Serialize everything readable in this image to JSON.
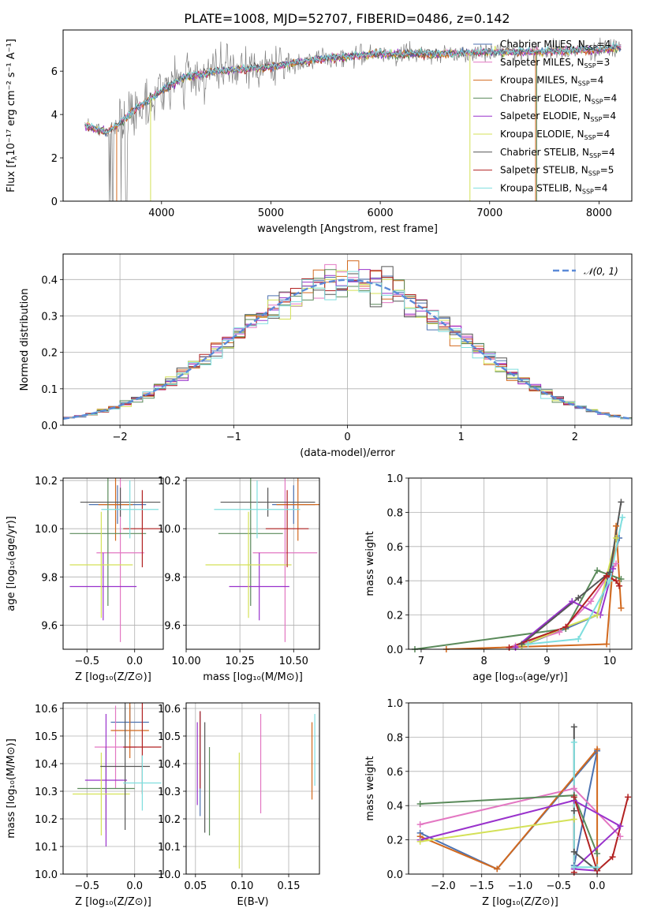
{
  "figure": {
    "title": "PLATE=1008, MJD=52707, FIBERID=0486, z=0.142"
  },
  "legend": {
    "entries": [
      {
        "label": "Chabrier MILES, N",
        "sub": "SSP",
        "tail": "=4",
        "color": "#4c72b0"
      },
      {
        "label": "Salpeter MILES, N",
        "sub": "SSP",
        "tail": "=3",
        "color": "#e377c2"
      },
      {
        "label": "Kroupa MILES, N",
        "sub": "SSP",
        "tail": "=4",
        "color": "#d2691e"
      },
      {
        "label": "Chabrier ELODIE, N",
        "sub": "SSP",
        "tail": "=4",
        "color": "#5a8a5a"
      },
      {
        "label": "Salpeter ELODIE, N",
        "sub": "SSP",
        "tail": "=4",
        "color": "#9932cc"
      },
      {
        "label": "Kroupa ELODIE, N",
        "sub": "SSP",
        "tail": "=4",
        "color": "#d4e157"
      },
      {
        "label": "Chabrier STELIB, N",
        "sub": "SSP",
        "tail": "=4",
        "color": "#555555"
      },
      {
        "label": "Salpeter STELIB, N",
        "sub": "SSP",
        "tail": "=5",
        "color": "#b22222"
      },
      {
        "label": "Kroupa STELIB, N",
        "sub": "SSP",
        "tail": "=4",
        "color": "#7fdede"
      }
    ],
    "normal_label": "𝒩(0, 1)"
  },
  "chart_data": [
    {
      "type": "line",
      "name": "spectrum",
      "xlabel": "wavelength [Angstrom, rest frame]",
      "ylabel": "Flux [f",
      "ylabel_sub": "λ",
      "ylabel_tail": "10⁻¹⁷ erg cm⁻² s⁻¹ A⁻¹]",
      "xlim": [
        3100,
        8300
      ],
      "ylim": [
        0,
        7.9
      ],
      "xticks": [
        "4000",
        "5000",
        "6000",
        "7000",
        "8000"
      ],
      "yticks": [
        "0",
        "2",
        "4",
        "6"
      ],
      "model_curve": {
        "x": [
          3300,
          3500,
          3600,
          3800,
          4000,
          4200,
          4500,
          5000,
          5500,
          6000,
          6500,
          7000,
          7500,
          8000,
          8200
        ],
        "y": [
          3.5,
          3.2,
          3.5,
          4.4,
          5.1,
          5.7,
          6.0,
          6.2,
          6.6,
          6.8,
          6.8,
          6.9,
          6.9,
          7.0,
          7.1
        ]
      }
    },
    {
      "type": "bar",
      "name": "residual-histogram",
      "xlabel": "(data-model)/error",
      "ylabel": "Normed distribution",
      "xlim": [
        -2.5,
        2.5
      ],
      "ylim": [
        0,
        0.47
      ],
      "xticks": [
        "−2",
        "−1",
        "0",
        "1",
        "2"
      ],
      "yticks": [
        "0.0",
        "0.1",
        "0.2",
        "0.3",
        "0.4"
      ],
      "bin_width": 0.1
    },
    {
      "type": "scatter",
      "name": "age-vs-Z",
      "xlabel": "Z [log₁₀(Z/Z⊙)]",
      "ylabel": "age  [log₁₀(age/yr)]",
      "xlim": [
        -0.75,
        0.3
      ],
      "ylim": [
        9.5,
        10.21
      ],
      "xticks": [
        "−0.5",
        "0.0"
      ],
      "yticks": [
        "9.6",
        "9.8",
        "10.0",
        "10.2"
      ],
      "points": [
        {
          "x": -0.18,
          "y": 10.1,
          "xerr": 0.3,
          "yerr": 0.08,
          "c": 0
        },
        {
          "x": -0.15,
          "y": 9.9,
          "xerr": 0.25,
          "yerr": 0.37,
          "c": 1
        },
        {
          "x": -0.2,
          "y": 10.1,
          "xerr": 0.18,
          "yerr": 0.15,
          "c": 2
        },
        {
          "x": -0.28,
          "y": 9.98,
          "xerr": 0.4,
          "yerr": 0.3,
          "c": 3
        },
        {
          "x": -0.33,
          "y": 9.76,
          "xerr": 0.35,
          "yerr": 0.14,
          "c": 4
        },
        {
          "x": -0.35,
          "y": 9.85,
          "xerr": 0.33,
          "yerr": 0.22,
          "c": 5
        },
        {
          "x": -0.15,
          "y": 10.11,
          "xerr": 0.42,
          "yerr": 0.06,
          "c": 6
        },
        {
          "x": 0.08,
          "y": 10.0,
          "xerr": 0.2,
          "yerr": 0.16,
          "c": 7
        },
        {
          "x": -0.05,
          "y": 10.08,
          "xerr": 0.3,
          "yerr": 0.12,
          "c": 8
        }
      ]
    },
    {
      "type": "scatter",
      "name": "age-vs-mass",
      "xlabel": "mass [log₁₀(M/M⊙)]",
      "ylabel": "",
      "xlim": [
        10.0,
        10.62
      ],
      "ylim": [
        9.5,
        10.21
      ],
      "xticks": [
        "10.00",
        "10.25",
        "10.50"
      ],
      "yticks": [
        "9.6",
        "9.8",
        "10.0",
        "10.2"
      ],
      "points": [
        {
          "x": 10.5,
          "y": 10.1,
          "xerr": 0.1,
          "yerr": 0.08,
          "c": 0
        },
        {
          "x": 10.46,
          "y": 9.9,
          "xerr": 0.15,
          "yerr": 0.37,
          "c": 1
        },
        {
          "x": 10.52,
          "y": 10.1,
          "xerr": 0.1,
          "yerr": 0.15,
          "c": 2
        },
        {
          "x": 10.3,
          "y": 9.98,
          "xerr": 0.15,
          "yerr": 0.3,
          "c": 3
        },
        {
          "x": 10.34,
          "y": 9.76,
          "xerr": 0.14,
          "yerr": 0.14,
          "c": 4
        },
        {
          "x": 10.29,
          "y": 9.85,
          "xerr": 0.2,
          "yerr": 0.22,
          "c": 5
        },
        {
          "x": 10.38,
          "y": 10.11,
          "xerr": 0.22,
          "yerr": 0.06,
          "c": 6
        },
        {
          "x": 10.47,
          "y": 10.0,
          "xerr": 0.1,
          "yerr": 0.16,
          "c": 7
        },
        {
          "x": 10.33,
          "y": 10.08,
          "xerr": 0.2,
          "yerr": 0.12,
          "c": 8
        }
      ]
    },
    {
      "type": "line",
      "name": "mass-weight-vs-age",
      "xlabel": "age  [log₁₀(age/yr)]",
      "ylabel": "mass weight",
      "xlim": [
        6.8,
        10.35
      ],
      "ylim": [
        0,
        1.0
      ],
      "xticks": [
        "7",
        "8",
        "9",
        "10"
      ],
      "yticks": [
        "0.0",
        "0.2",
        "0.4",
        "0.6",
        "0.8",
        "1.0"
      ],
      "series": [
        {
          "c": 0,
          "x": [
            8.6,
            9.3,
            9.8,
            10.15
          ],
          "y": [
            0.02,
            0.12,
            0.2,
            0.65
          ]
        },
        {
          "c": 1,
          "x": [
            8.5,
            9.2,
            9.7,
            10.1
          ],
          "y": [
            0.02,
            0.1,
            0.28,
            0.5
          ]
        },
        {
          "c": 2,
          "x": [
            7.4,
            9.95,
            10.1,
            10.18
          ],
          "y": [
            0.0,
            0.03,
            0.72,
            0.24
          ]
        },
        {
          "c": 3,
          "x": [
            6.9,
            9.3,
            9.8,
            10.18
          ],
          "y": [
            0.0,
            0.12,
            0.46,
            0.41
          ]
        },
        {
          "c": 4,
          "x": [
            8.5,
            9.4,
            9.85,
            10.05
          ],
          "y": [
            0.01,
            0.28,
            0.2,
            0.47
          ]
        },
        {
          "c": 5,
          "x": [
            8.6,
            9.3,
            9.8,
            10.1
          ],
          "y": [
            0.02,
            0.13,
            0.2,
            0.65
          ]
        },
        {
          "c": 6,
          "x": [
            8.6,
            9.5,
            10.0,
            10.18
          ],
          "y": [
            0.03,
            0.3,
            0.45,
            0.86
          ]
        },
        {
          "c": 7,
          "x": [
            8.4,
            9.3,
            9.95,
            10.1,
            10.15
          ],
          "y": [
            0.01,
            0.13,
            0.43,
            0.4,
            0.37
          ]
        },
        {
          "c": 8,
          "x": [
            8.7,
            9.5,
            10.0,
            10.2
          ],
          "y": [
            0.03,
            0.06,
            0.4,
            0.77
          ]
        }
      ]
    },
    {
      "type": "scatter",
      "name": "mass-vs-Z",
      "xlabel": "Z [log₁₀(Z/Z⊙)]",
      "ylabel": "mass [log₁₀(M/M⊙)]",
      "xlim": [
        -0.75,
        0.3
      ],
      "ylim": [
        10.0,
        10.62
      ],
      "xticks": [
        "−0.5",
        "0.0"
      ],
      "yticks": [
        "10.0",
        "10.1",
        "10.2",
        "10.3",
        "10.4",
        "10.5",
        "10.6"
      ],
      "points": [
        {
          "x": -0.05,
          "y": 10.55,
          "xerr": 0.2,
          "yerr": 0.06,
          "c": 0
        },
        {
          "x": -0.2,
          "y": 10.46,
          "xerr": 0.22,
          "yerr": 0.15,
          "c": 1
        },
        {
          "x": -0.05,
          "y": 10.52,
          "xerr": 0.2,
          "yerr": 0.1,
          "c": 2
        },
        {
          "x": -0.3,
          "y": 10.31,
          "xerr": 0.3,
          "yerr": 0.15,
          "c": 3
        },
        {
          "x": -0.3,
          "y": 10.34,
          "xerr": 0.22,
          "yerr": 0.24,
          "c": 4
        },
        {
          "x": -0.35,
          "y": 10.29,
          "xerr": 0.3,
          "yerr": 0.15,
          "c": 5
        },
        {
          "x": -0.1,
          "y": 10.39,
          "xerr": 0.26,
          "yerr": 0.23,
          "c": 6
        },
        {
          "x": 0.08,
          "y": 10.46,
          "xerr": 0.2,
          "yerr": 0.17,
          "c": 7
        },
        {
          "x": 0.08,
          "y": 10.33,
          "xerr": 0.2,
          "yerr": 0.1,
          "c": 8
        }
      ]
    },
    {
      "type": "scatter",
      "name": "mass-vs-EBV",
      "xlabel": "E(B-V)",
      "ylabel": "",
      "xlim": [
        0.04,
        0.183
      ],
      "ylim": [
        10.0,
        10.62
      ],
      "xticks": [
        "0.05",
        "0.10",
        "0.15"
      ],
      "yticks": [
        "10.0",
        "10.1",
        "10.2",
        "10.3",
        "10.4",
        "10.5",
        "10.6"
      ],
      "points": [
        {
          "x": 0.055,
          "y": 10.4,
          "yerr": 0.19,
          "c": 0
        },
        {
          "x": 0.12,
          "y": 10.4,
          "yerr": 0.18,
          "c": 1
        },
        {
          "x": 0.175,
          "y": 10.41,
          "yerr": 0.14,
          "c": 2
        },
        {
          "x": 0.065,
          "y": 10.3,
          "yerr": 0.16,
          "c": 3
        },
        {
          "x": 0.052,
          "y": 10.4,
          "yerr": 0.15,
          "c": 4
        },
        {
          "x": 0.097,
          "y": 10.23,
          "yerr": 0.21,
          "c": 5
        },
        {
          "x": 0.06,
          "y": 10.35,
          "yerr": 0.2,
          "c": 6
        },
        {
          "x": 0.055,
          "y": 10.45,
          "yerr": 0.14,
          "c": 7
        },
        {
          "x": 0.178,
          "y": 10.45,
          "yerr": 0.13,
          "c": 8
        }
      ]
    },
    {
      "type": "line",
      "name": "mass-weight-vs-Z",
      "xlabel": "Z [log₁₀(Z/Z⊙)]",
      "ylabel": "mass weight",
      "xlim": [
        -2.45,
        0.45
      ],
      "ylim": [
        0,
        1.0
      ],
      "xticks": [
        "−2.0",
        "−1.5",
        "−1.0",
        "−0.5",
        "0.0"
      ],
      "yticks": [
        "0.0",
        "0.2",
        "0.4",
        "0.6",
        "0.8",
        "1.0"
      ],
      "series": [
        {
          "c": 0,
          "x": [
            -2.3,
            -1.3,
            0.0,
            -0.3
          ],
          "y": [
            0.24,
            0.03,
            0.72,
            0.05
          ]
        },
        {
          "c": 1,
          "x": [
            -2.3,
            -0.3,
            0.3
          ],
          "y": [
            0.29,
            0.5,
            0.22
          ]
        },
        {
          "c": 2,
          "x": [
            -2.3,
            -1.3,
            0.0,
            0.0
          ],
          "y": [
            0.22,
            0.03,
            0.73,
            0.02
          ]
        },
        {
          "c": 3,
          "x": [
            -2.3,
            -0.3,
            0.0
          ],
          "y": [
            0.41,
            0.46,
            0.12
          ]
        },
        {
          "c": 4,
          "x": [
            -2.3,
            -0.3,
            0.3,
            -0.3,
            0.0
          ],
          "y": [
            0.2,
            0.43,
            0.28,
            0.03,
            0.02
          ]
        },
        {
          "c": 5,
          "x": [
            -2.3,
            -0.3
          ],
          "y": [
            0.19,
            0.32
          ]
        },
        {
          "c": 6,
          "x": [
            -0.3,
            -0.3,
            -0.3,
            0.0
          ],
          "y": [
            0.86,
            0.37,
            0.13,
            0.02
          ]
        },
        {
          "c": 7,
          "x": [
            -0.3,
            -0.3,
            0.0,
            0.2,
            0.4
          ],
          "y": [
            0.01,
            0.45,
            0.02,
            0.1,
            0.45
          ]
        },
        {
          "c": 8,
          "x": [
            -0.3,
            -0.3,
            0.0
          ],
          "y": [
            0.77,
            0.04,
            0.04
          ]
        }
      ]
    }
  ]
}
